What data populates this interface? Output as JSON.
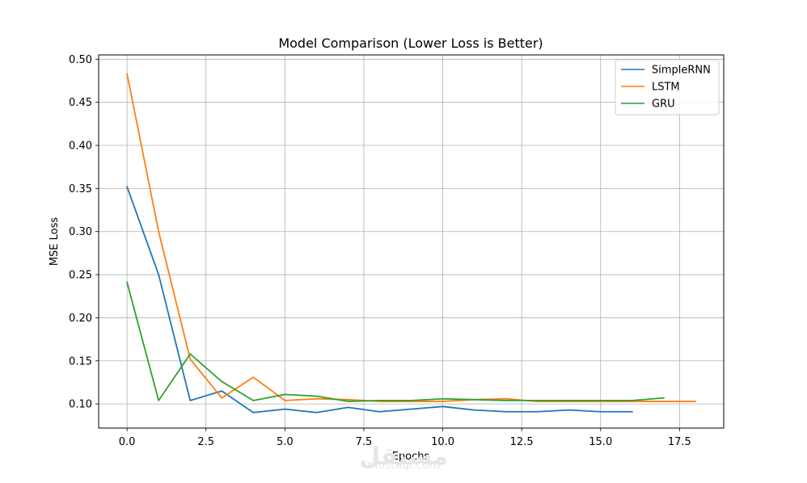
{
  "chart_data": {
    "type": "line",
    "title": "Model Comparison (Lower Loss is Better)",
    "xlabel": "Epochs",
    "ylabel": "MSE Loss",
    "xlim": [
      -0.9,
      18.9
    ],
    "ylim": [
      0.072,
      0.505
    ],
    "xticks": [
      0.0,
      2.5,
      5.0,
      7.5,
      10.0,
      12.5,
      15.0,
      17.5
    ],
    "xtick_labels": [
      "0.0",
      "2.5",
      "5.0",
      "7.5",
      "10.0",
      "12.5",
      "15.0",
      "17.5"
    ],
    "yticks": [
      0.1,
      0.15,
      0.2,
      0.25,
      0.3,
      0.35,
      0.4,
      0.45,
      0.5
    ],
    "ytick_labels": [
      "0.10",
      "0.15",
      "0.20",
      "0.25",
      "0.30",
      "0.35",
      "0.40",
      "0.45",
      "0.50"
    ],
    "grid": true,
    "legend_position": "top-right",
    "series": [
      {
        "name": "SimpleRNN",
        "color": "#1f77b4",
        "x": [
          0,
          1,
          2,
          3,
          4,
          5,
          6,
          7,
          8,
          9,
          10,
          11,
          12,
          13,
          14,
          15,
          16
        ],
        "values": [
          0.352,
          0.25,
          0.104,
          0.115,
          0.09,
          0.094,
          0.09,
          0.096,
          0.091,
          0.094,
          0.097,
          0.093,
          0.091,
          0.091,
          0.093,
          0.091,
          0.091
        ]
      },
      {
        "name": "LSTM",
        "color": "#ff7f0e",
        "x": [
          0,
          1,
          2,
          3,
          4,
          5,
          6,
          7,
          8,
          9,
          10,
          11,
          12,
          13,
          14,
          15,
          16,
          17,
          18
        ],
        "values": [
          0.483,
          0.3,
          0.152,
          0.107,
          0.131,
          0.104,
          0.106,
          0.105,
          0.103,
          0.103,
          0.103,
          0.105,
          0.106,
          0.103,
          0.103,
          0.103,
          0.103,
          0.103,
          0.103
        ]
      },
      {
        "name": "GRU",
        "color": "#2ca02c",
        "x": [
          0,
          1,
          2,
          3,
          4,
          5,
          6,
          7,
          8,
          9,
          10,
          11,
          12,
          13,
          14,
          15,
          16,
          17
        ],
        "values": [
          0.241,
          0.104,
          0.158,
          0.126,
          0.104,
          0.111,
          0.109,
          0.103,
          0.104,
          0.104,
          0.106,
          0.105,
          0.104,
          0.104,
          0.104,
          0.104,
          0.104,
          0.107
        ]
      }
    ]
  },
  "watermark": {
    "logo_text": "مستقل",
    "site_text": "mostaql.com"
  }
}
